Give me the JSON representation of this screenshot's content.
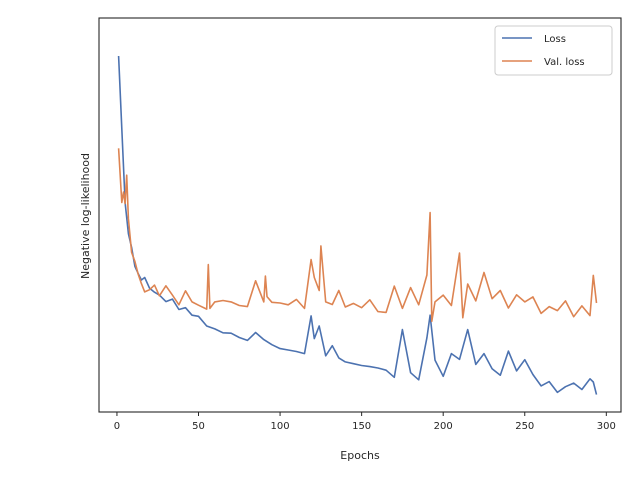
{
  "chart_data": {
    "type": "line",
    "xlabel": "Epochs",
    "ylabel": "Negative log-likelihood",
    "xlim": [
      -11,
      309
    ],
    "ylim": [
      0,
      1
    ],
    "x_ticks": [
      0,
      50,
      100,
      150,
      200,
      250,
      300
    ],
    "y_ticks_shown": false,
    "grid": false,
    "legend_position": "top-right",
    "series": [
      {
        "name": "Loss",
        "color": "#4c72b0",
        "x": [
          1,
          3,
          5,
          7,
          9,
          11,
          13,
          15,
          17,
          20,
          23,
          26,
          30,
          34,
          38,
          42,
          46,
          50,
          55,
          60,
          65,
          70,
          75,
          80,
          85,
          90,
          95,
          100,
          105,
          110,
          115,
          119,
          121,
          124,
          128,
          132,
          136,
          140,
          145,
          150,
          155,
          160,
          165,
          170,
          175,
          180,
          185,
          190,
          192,
          195,
          200,
          205,
          210,
          215,
          220,
          225,
          230,
          235,
          240,
          245,
          250,
          255,
          260,
          265,
          270,
          275,
          280,
          285,
          290,
          292,
          294
        ],
        "y": [
          0.947,
          0.745,
          0.539,
          0.452,
          0.414,
          0.361,
          0.341,
          0.323,
          0.33,
          0.3,
          0.289,
          0.281,
          0.263,
          0.27,
          0.241,
          0.246,
          0.225,
          0.222,
          0.195,
          0.187,
          0.176,
          0.175,
          0.163,
          0.155,
          0.177,
          0.157,
          0.143,
          0.132,
          0.128,
          0.124,
          0.118,
          0.223,
          0.16,
          0.195,
          0.112,
          0.14,
          0.106,
          0.095,
          0.09,
          0.085,
          0.082,
          0.078,
          0.072,
          0.052,
          0.185,
          0.065,
          0.045,
          0.162,
          0.225,
          0.1,
          0.055,
          0.118,
          0.102,
          0.185,
          0.088,
          0.118,
          0.076,
          0.058,
          0.125,
          0.07,
          0.101,
          0.06,
          0.028,
          0.04,
          0.01,
          0.026,
          0.036,
          0.018,
          0.048,
          0.039,
          0.004
        ]
      },
      {
        "name": "Val. loss",
        "color": "#dd8452",
        "x": [
          1,
          3,
          4,
          5,
          6,
          7,
          9,
          11,
          13,
          15,
          17,
          20,
          23,
          26,
          30,
          34,
          38,
          42,
          46,
          50,
          55,
          56,
          57,
          60,
          65,
          70,
          75,
          80,
          85,
          90,
          91,
          92,
          95,
          100,
          105,
          110,
          115,
          119,
          121,
          124,
          125,
          128,
          132,
          136,
          140,
          145,
          150,
          155,
          160,
          165,
          170,
          175,
          180,
          185,
          190,
          192,
          193,
          195,
          200,
          205,
          210,
          212,
          215,
          220,
          225,
          230,
          235,
          240,
          245,
          250,
          255,
          260,
          265,
          270,
          275,
          280,
          285,
          290,
          292,
          294
        ],
        "y": [
          0.69,
          0.539,
          0.568,
          0.536,
          0.615,
          0.494,
          0.4,
          0.375,
          0.339,
          0.313,
          0.29,
          0.296,
          0.309,
          0.279,
          0.307,
          0.281,
          0.254,
          0.293,
          0.262,
          0.253,
          0.242,
          0.366,
          0.244,
          0.262,
          0.266,
          0.262,
          0.252,
          0.249,
          0.321,
          0.262,
          0.334,
          0.277,
          0.261,
          0.259,
          0.254,
          0.269,
          0.244,
          0.38,
          0.33,
          0.294,
          0.418,
          0.262,
          0.255,
          0.294,
          0.248,
          0.258,
          0.246,
          0.268,
          0.235,
          0.233,
          0.306,
          0.244,
          0.302,
          0.254,
          0.337,
          0.511,
          0.208,
          0.262,
          0.281,
          0.252,
          0.398,
          0.218,
          0.312,
          0.265,
          0.344,
          0.271,
          0.294,
          0.245,
          0.282,
          0.262,
          0.276,
          0.23,
          0.249,
          0.238,
          0.265,
          0.221,
          0.251,
          0.224,
          0.336,
          0.259
        ]
      }
    ]
  }
}
